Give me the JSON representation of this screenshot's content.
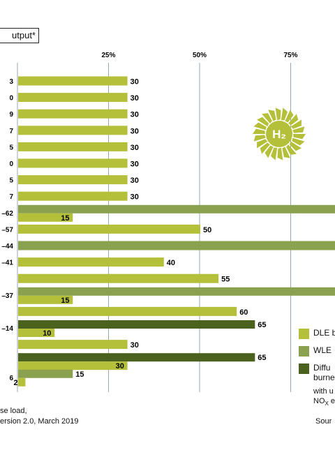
{
  "chart_data": {
    "type": "bar",
    "title": "utput*",
    "ylim": [
      0,
      100
    ],
    "ticks": [
      "25%",
      "50%",
      "75%"
    ],
    "tick_values": [
      25,
      50,
      75
    ],
    "colors": {
      "dle": "#b5c03a",
      "wle": "#8aa14f",
      "diffusion": "#4a621d"
    },
    "rows": [
      {
        "label": "3",
        "bars": [
          {
            "series": "dle",
            "value": 30,
            "label": "30"
          }
        ]
      },
      {
        "label": "0",
        "bars": [
          {
            "series": "dle",
            "value": 30,
            "label": "30"
          }
        ]
      },
      {
        "label": "9",
        "bars": [
          {
            "series": "dle",
            "value": 30,
            "label": "30"
          }
        ]
      },
      {
        "label": "7",
        "bars": [
          {
            "series": "dle",
            "value": 30,
            "label": "30"
          }
        ]
      },
      {
        "label": "5",
        "bars": [
          {
            "series": "dle",
            "value": 30,
            "label": "30"
          }
        ]
      },
      {
        "label": "0",
        "bars": [
          {
            "series": "dle",
            "value": 30,
            "label": "30"
          }
        ]
      },
      {
        "label": "5",
        "bars": [
          {
            "series": "dle",
            "value": 30,
            "label": "30"
          }
        ]
      },
      {
        "label": "7",
        "bars": [
          {
            "series": "dle",
            "value": 30,
            "label": "30"
          }
        ]
      },
      {
        "label": "–62",
        "bars": [
          {
            "series": "wle",
            "value": 100,
            "label": ""
          },
          {
            "series": "dle",
            "value": 15,
            "label": "15"
          }
        ]
      },
      {
        "label": "–57",
        "bars": [
          {
            "series": "dle",
            "value": 50,
            "label": "50"
          }
        ]
      },
      {
        "label": "–44",
        "bars": [
          {
            "series": "wle",
            "value": 100,
            "label": ""
          }
        ]
      },
      {
        "label": "–41",
        "bars": [
          {
            "series": "dle",
            "value": 40,
            "label": "40"
          }
        ]
      },
      {
        "label": "",
        "bars": [
          {
            "series": "dle",
            "value": 55,
            "label": "55"
          }
        ]
      },
      {
        "label": "–37",
        "bars": [
          {
            "series": "wle",
            "value": 100,
            "label": ""
          },
          {
            "series": "dle",
            "value": 15,
            "label": "15"
          }
        ]
      },
      {
        "label": "",
        "bars": [
          {
            "series": "dle",
            "value": 60,
            "label": "60"
          }
        ]
      },
      {
        "label": "–14",
        "bars": [
          {
            "series": "diffusion",
            "value": 65,
            "label": "65"
          },
          {
            "series": "dle",
            "value": 10,
            "label": "10"
          }
        ]
      },
      {
        "label": "",
        "bars": [
          {
            "series": "dle",
            "value": 30,
            "label": "30"
          }
        ]
      },
      {
        "label": "",
        "bars": [
          {
            "series": "diffusion",
            "value": 65,
            "label": "65"
          },
          {
            "series": "dle",
            "value": 30,
            "label": "30"
          }
        ]
      },
      {
        "label": "6",
        "bars": [
          {
            "series": "wle",
            "value": 15,
            "label": "15"
          },
          {
            "series": "dle",
            "value": 2,
            "label": "2"
          }
        ]
      }
    ]
  },
  "legend": {
    "dle": "DLE b",
    "wle": "WLE",
    "diffusion_line1": "Diffu",
    "diffusion_line2": "burne",
    "note_line1": "with u",
    "note_line2_main": "NO",
    "note_line2_sub": "X",
    "note_line2_tail": " e"
  },
  "emblem_label": "H₂",
  "footnotes": {
    "line1": "se load,",
    "line2": "ersion 2.0, March 2019",
    "source": "Sour"
  }
}
